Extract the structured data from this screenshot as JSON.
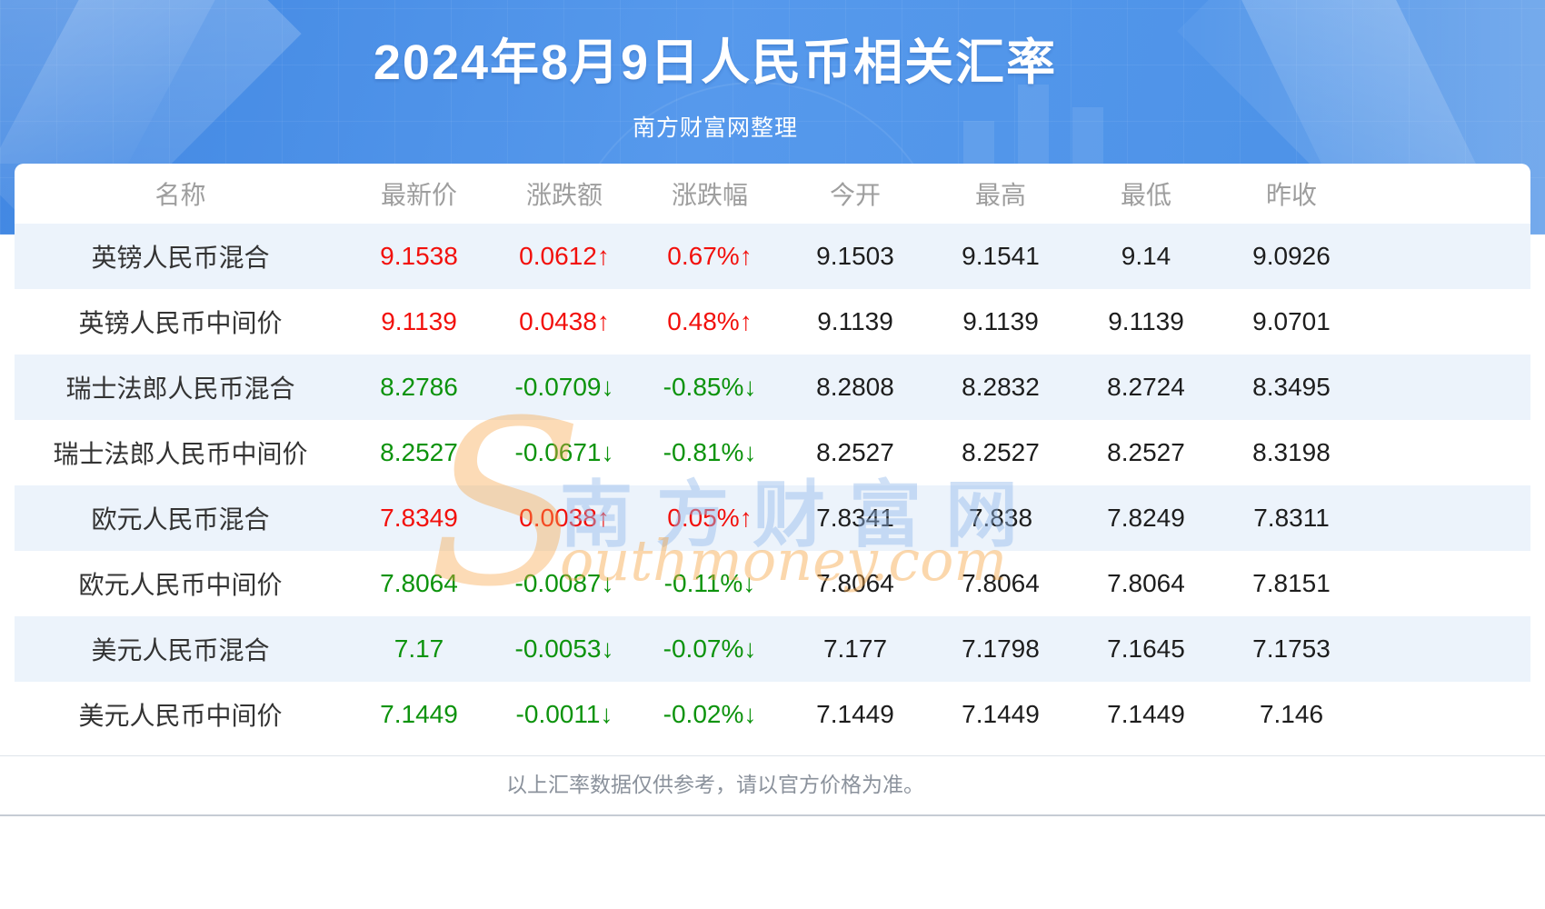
{
  "header": {
    "title": "2024年8月9日人民币相关汇率",
    "subtitle": "南方财富网整理"
  },
  "watermark": {
    "initial": "S",
    "cn": "南方财富网",
    "en": "outhmoney.com"
  },
  "footer": {
    "note": "以上汇率数据仅供参考，请以官方价格为准。"
  },
  "colors": {
    "up": "#f2100c",
    "down": "#0d930d",
    "banner": "#4e93e8",
    "stripe": "#ecf3fb",
    "header_text": "#9e9e9e"
  },
  "chart_data": {
    "type": "table",
    "title": "2024年8月9日人民币相关汇率",
    "subtitle": "南方财富网整理",
    "columns": [
      "名称",
      "最新价",
      "涨跌额",
      "涨跌幅",
      "今开",
      "最高",
      "最低",
      "昨收"
    ],
    "arrows": {
      "up": "↑",
      "down": "↓"
    },
    "rows": [
      {
        "name": "英镑人民币混合",
        "latest": "9.1538",
        "change": "0.0612",
        "pct": "0.67%",
        "trend": "up",
        "open": "9.1503",
        "high": "9.1541",
        "low": "9.14",
        "prev_close": "9.0926"
      },
      {
        "name": "英镑人民币中间价",
        "latest": "9.1139",
        "change": "0.0438",
        "pct": "0.48%",
        "trend": "up",
        "open": "9.1139",
        "high": "9.1139",
        "low": "9.1139",
        "prev_close": "9.0701"
      },
      {
        "name": "瑞士法郎人民币混合",
        "latest": "8.2786",
        "change": "-0.0709",
        "pct": "-0.85%",
        "trend": "down",
        "open": "8.2808",
        "high": "8.2832",
        "low": "8.2724",
        "prev_close": "8.3495"
      },
      {
        "name": "瑞士法郎人民币中间价",
        "latest": "8.2527",
        "change": "-0.0671",
        "pct": "-0.81%",
        "trend": "down",
        "open": "8.2527",
        "high": "8.2527",
        "low": "8.2527",
        "prev_close": "8.3198"
      },
      {
        "name": "欧元人民币混合",
        "latest": "7.8349",
        "change": "0.0038",
        "pct": "0.05%",
        "trend": "up",
        "open": "7.8341",
        "high": "7.838",
        "low": "7.8249",
        "prev_close": "7.8311"
      },
      {
        "name": "欧元人民币中间价",
        "latest": "7.8064",
        "change": "-0.0087",
        "pct": "-0.11%",
        "trend": "down",
        "open": "7.8064",
        "high": "7.8064",
        "low": "7.8064",
        "prev_close": "7.8151"
      },
      {
        "name": "美元人民币混合",
        "latest": "7.17",
        "change": "-0.0053",
        "pct": "-0.07%",
        "trend": "down",
        "open": "7.177",
        "high": "7.1798",
        "low": "7.1645",
        "prev_close": "7.1753"
      },
      {
        "name": "美元人民币中间价",
        "latest": "7.1449",
        "change": "-0.0011",
        "pct": "-0.02%",
        "trend": "down",
        "open": "7.1449",
        "high": "7.1449",
        "low": "7.1449",
        "prev_close": "7.146"
      }
    ]
  }
}
